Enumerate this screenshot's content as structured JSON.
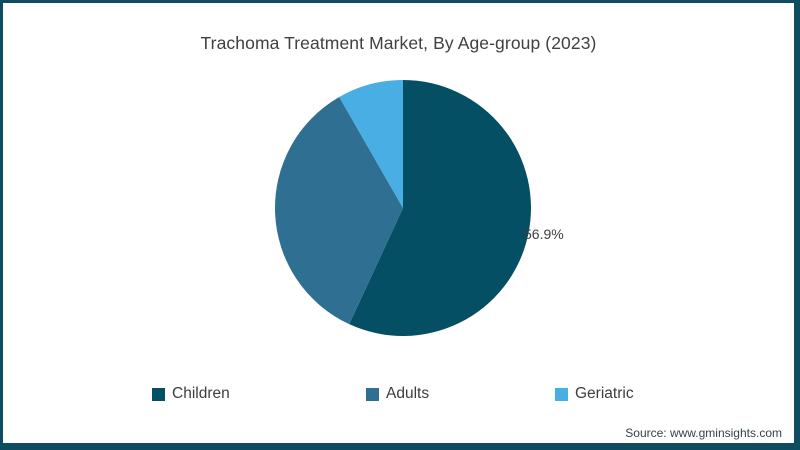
{
  "chart_data": {
    "type": "pie",
    "title": "Trachoma Treatment Market, By Age-group (2023)",
    "start_angle_deg": 0,
    "direction": "clockwise",
    "legend_position": "bottom",
    "slices": [
      {
        "label": "Children",
        "value": 56.9,
        "color": "#044f63"
      },
      {
        "label": "Adults",
        "value": 34.8,
        "color": "#2f7092"
      },
      {
        "label": "Geriatric",
        "value": 8.3,
        "color": "#49aee3"
      }
    ],
    "data_labels": [
      {
        "slice": "Children",
        "text": "56.9%"
      }
    ]
  },
  "frame": {
    "border_color": "#0e4c61",
    "background": "#ffffff"
  },
  "footer": {
    "source": "Source: www.gminsights.com"
  }
}
